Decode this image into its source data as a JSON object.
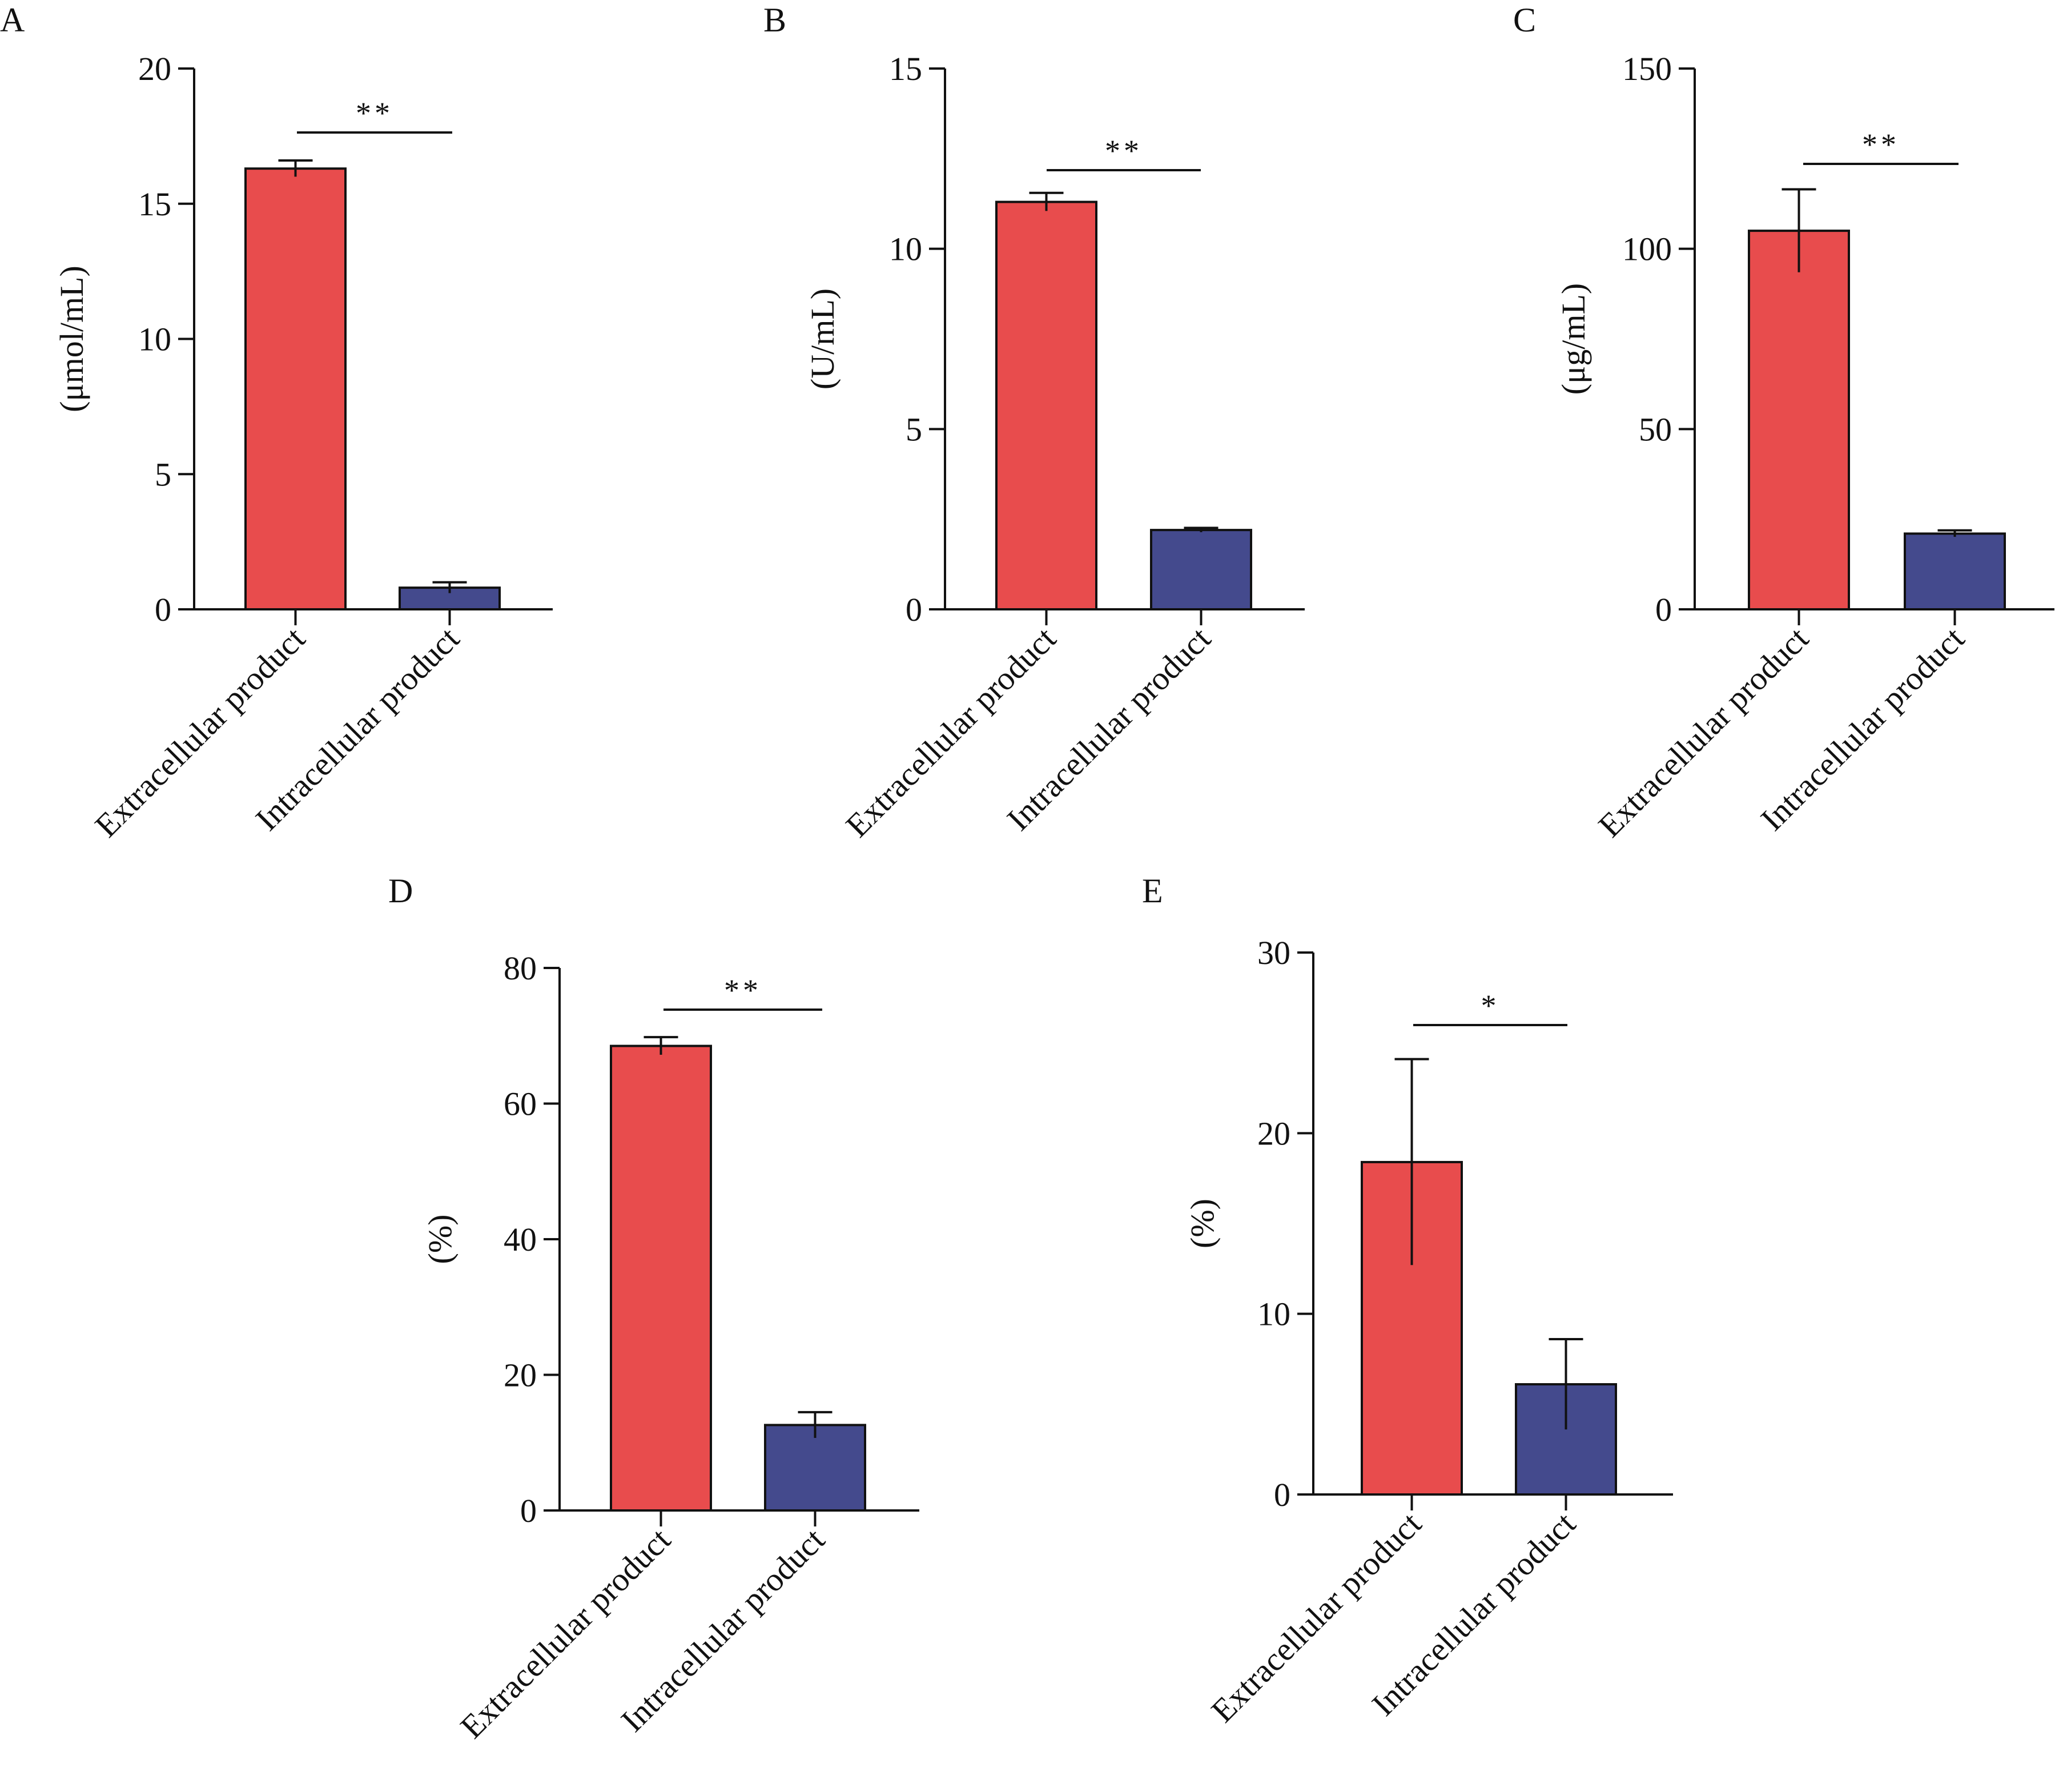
{
  "colors": {
    "extracellular": "#e84c4d",
    "intracellular": "#444a8d",
    "axis": "#111111"
  },
  "chart_data": [
    {
      "panel": "A",
      "type": "bar",
      "categories": [
        "Extracellular product",
        "Intracellular product"
      ],
      "values": [
        16.3,
        0.8
      ],
      "errors": [
        0.3,
        0.2
      ],
      "ylabel": "(μmol/mL)",
      "ylim": [
        0,
        20
      ],
      "yticks": [
        0,
        5,
        10,
        15,
        20
      ],
      "significance": "**",
      "legend": "none",
      "grid": false
    },
    {
      "panel": "B",
      "type": "bar",
      "categories": [
        "Extracellular product",
        "Intracellular product"
      ],
      "values": [
        11.3,
        2.2
      ],
      "errors": [
        0.25,
        0.06
      ],
      "ylabel": "(U/mL)",
      "ylim": [
        0,
        15
      ],
      "yticks": [
        0,
        5,
        10,
        15
      ],
      "significance": "**",
      "legend": "none",
      "grid": false
    },
    {
      "panel": "C",
      "type": "bar",
      "categories": [
        "Extracellular product",
        "Intracellular product"
      ],
      "values": [
        105,
        21
      ],
      "errors": [
        11.5,
        0.9
      ],
      "ylabel": "(μg/mL)",
      "ylim": [
        0,
        150
      ],
      "yticks": [
        0,
        50,
        100,
        150
      ],
      "significance": "**",
      "legend": "none",
      "grid": false
    },
    {
      "panel": "D",
      "type": "bar",
      "categories": [
        "Extracellular product",
        "Intracellular product"
      ],
      "values": [
        68.5,
        12.6
      ],
      "errors": [
        1.3,
        1.9
      ],
      "ylabel": "(%)",
      "ylim": [
        0,
        80
      ],
      "yticks": [
        0,
        20,
        40,
        60,
        80
      ],
      "significance": "**",
      "legend": "none",
      "grid": false
    },
    {
      "panel": "E",
      "type": "bar",
      "categories": [
        "Extracellular product",
        "Intracellular product"
      ],
      "values": [
        18.4,
        6.1
      ],
      "errors": [
        5.7,
        2.5
      ],
      "ylabel": "(%)",
      "ylim": [
        0,
        30
      ],
      "yticks": [
        0,
        10,
        20,
        30
      ],
      "significance": "*",
      "legend": "none",
      "grid": false
    }
  ]
}
